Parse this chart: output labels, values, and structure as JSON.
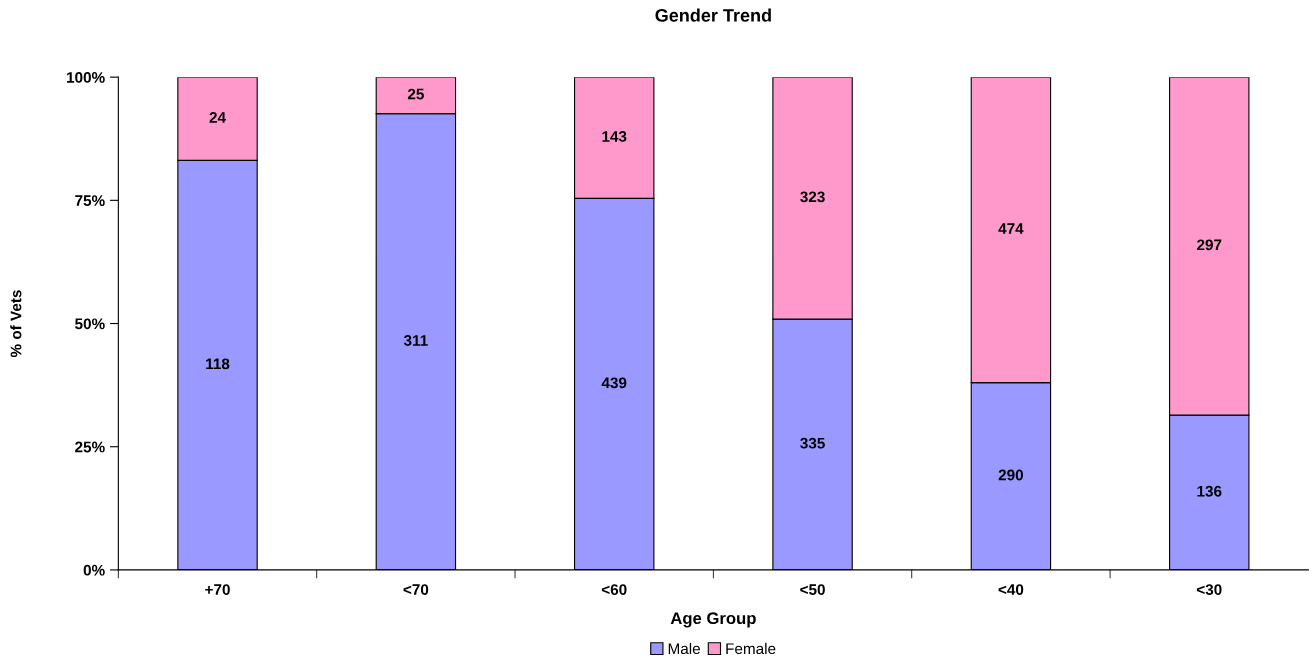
{
  "chart_data": {
    "type": "bar",
    "title": "Gender Trend",
    "xlabel": "Age Group",
    "ylabel": "% of Vets",
    "categories": [
      "+70",
      "<70",
      "<60",
      "<50",
      "<40",
      "<30"
    ],
    "stacked": true,
    "series": [
      {
        "name": "Male",
        "color": "#9999ff",
        "values": [
          83.1,
          92.6,
          75.4,
          50.9,
          38.0,
          31.4
        ]
      },
      {
        "name": "Female",
        "color": "#ff99cc",
        "values": [
          16.9,
          7.4,
          24.6,
          49.1,
          62.0,
          68.6
        ]
      }
    ],
    "annotations": [
      "118",
      "311",
      "439",
      "335",
      "290",
      "136",
      "24",
      "25",
      "143",
      "323",
      "474",
      "297"
    ],
    "ylim": [
      0,
      100
    ],
    "yticks": [
      {
        "value": 0,
        "label": "0%"
      },
      {
        "value": 25,
        "label": "25%"
      },
      {
        "value": 50,
        "label": "50%"
      },
      {
        "value": 75,
        "label": "75%"
      },
      {
        "value": 100,
        "label": "100%"
      }
    ],
    "legend": "bottom"
  }
}
